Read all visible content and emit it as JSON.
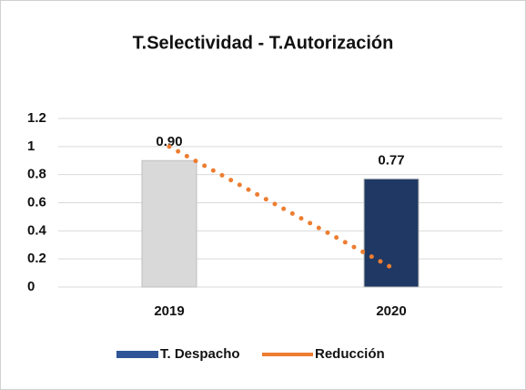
{
  "chart_data": {
    "type": "bar",
    "title": "T.Selectividad - T.Autorización",
    "categories": [
      "2019",
      "2020"
    ],
    "series": [
      {
        "name": "T. Despacho",
        "type": "bar",
        "color": "#2f5597",
        "colors": [
          "#d9d9d9",
          "#1f3864"
        ],
        "values": [
          0.9,
          0.77
        ],
        "value_labels": [
          "0.90",
          "0.77"
        ]
      },
      {
        "name": "Reducción",
        "type": "line",
        "color": "#ed7d31",
        "values": [
          1.0,
          0.14
        ]
      }
    ],
    "ylim": [
      0,
      1.2
    ],
    "yticks": [
      0,
      0.2,
      0.4,
      0.6,
      0.8,
      1,
      1.2
    ],
    "grid": true,
    "legend": "bottom"
  }
}
